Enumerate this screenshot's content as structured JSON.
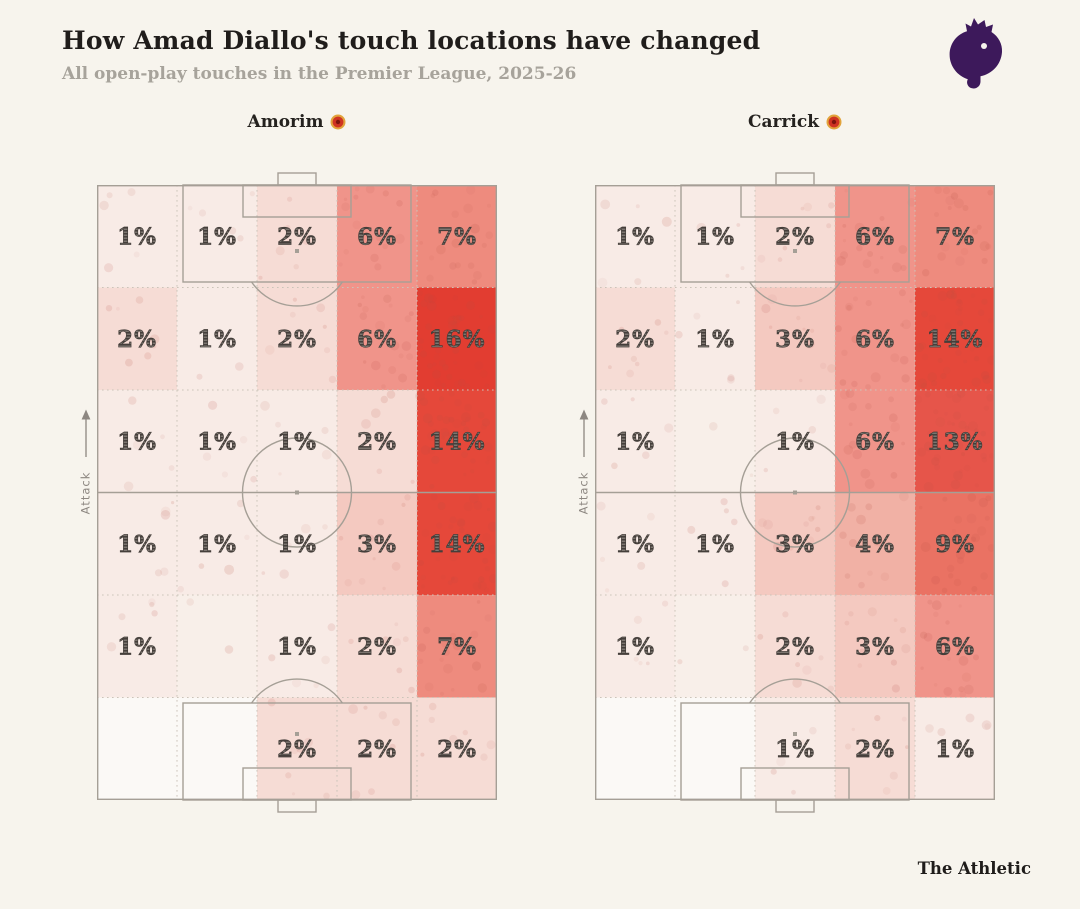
{
  "header": {
    "title": "How Amad Diallo's touch locations have changed",
    "subtitle": "All open-play touches in the Premier League, 2025-26"
  },
  "footer": {
    "brand": "The Athletic"
  },
  "icons": {
    "premier_league_logo": "premier-league-lion",
    "club_crest": "manchester-united-crest",
    "premier_league_purple": "#3d195b",
    "crest_red": "#cf3322",
    "crest_gold": "#e2a33b"
  },
  "chart_data": {
    "type": "heatmap",
    "title": "How Amad Diallo's touch locations have changed",
    "subtitle": "All open-play touches in the Premier League, 2025-26",
    "attack_label": "Attack",
    "unit": "%",
    "grid": {
      "rows": 6,
      "cols": 5,
      "orientation": "attack-up"
    },
    "pitches": [
      {
        "label": "Amorim",
        "values": [
          [
            1,
            1,
            2,
            6,
            7
          ],
          [
            2,
            1,
            2,
            6,
            16
          ],
          [
            1,
            1,
            1,
            2,
            14
          ],
          [
            1,
            1,
            1,
            3,
            14
          ],
          [
            1,
            0,
            1,
            2,
            7
          ],
          [
            null,
            null,
            2,
            2,
            2
          ]
        ]
      },
      {
        "label": "Carrick",
        "values": [
          [
            1,
            1,
            2,
            6,
            7
          ],
          [
            2,
            1,
            3,
            6,
            14
          ],
          [
            1,
            0,
            1,
            6,
            13
          ],
          [
            1,
            1,
            3,
            4,
            9
          ],
          [
            1,
            0,
            2,
            3,
            6
          ],
          [
            null,
            null,
            1,
            2,
            1
          ]
        ]
      }
    ],
    "color_scale": {
      "blank": "#fbf9f6",
      "0": "#f8efe9",
      "1": "#f8ebe6",
      "2": "#f6dcd5",
      "3": "#f4c9c0",
      "4": "#f1b1a5",
      "6": "#f0948a",
      "7": "#ee8b7e",
      "9": "#ea7263",
      "13": "#e6554a",
      "14": "#e5483a",
      "16": "#e23d31"
    }
  }
}
